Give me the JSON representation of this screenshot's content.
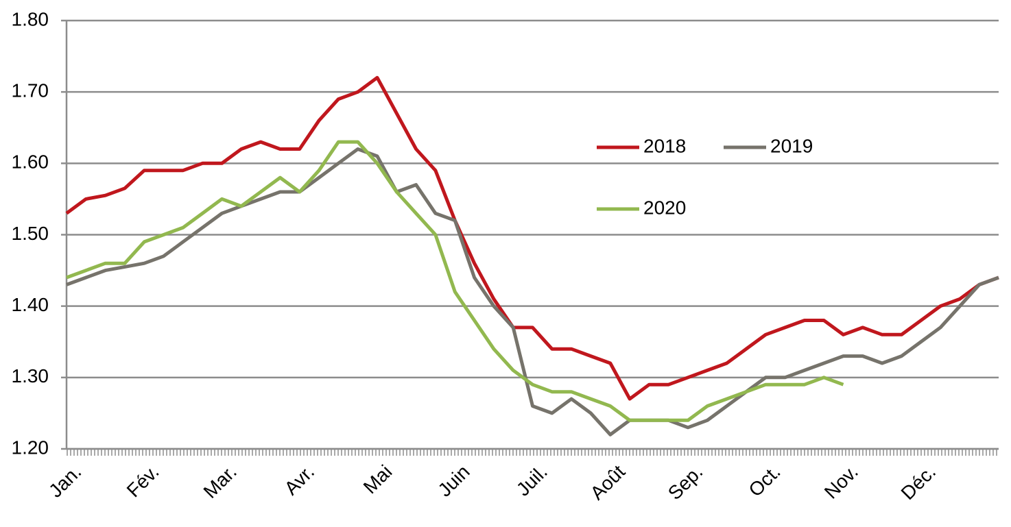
{
  "chart_data": {
    "type": "line",
    "categories": [
      "Jan.",
      null,
      null,
      null,
      "Fév.",
      null,
      null,
      null,
      "Mar.",
      null,
      null,
      null,
      "Avr.",
      null,
      null,
      null,
      "Mai",
      null,
      null,
      null,
      "Juin",
      null,
      null,
      null,
      "Juil.",
      null,
      null,
      null,
      "Août",
      null,
      null,
      null,
      "Sep.",
      null,
      null,
      null,
      "Oct.",
      null,
      null,
      null,
      "Nov.",
      null,
      null,
      null,
      "Déc.",
      null,
      null,
      null,
      null
    ],
    "series": [
      {
        "name": "2018",
        "color": "#c0171d",
        "values": [
          1.53,
          1.55,
          1.555,
          1.565,
          1.59,
          1.59,
          1.59,
          1.6,
          1.6,
          1.62,
          1.63,
          1.62,
          1.62,
          1.66,
          1.69,
          1.7,
          1.72,
          1.67,
          1.62,
          1.59,
          1.52,
          1.46,
          1.41,
          1.37,
          1.37,
          1.34,
          1.34,
          1.33,
          1.32,
          1.27,
          1.29,
          1.29,
          1.3,
          1.31,
          1.32,
          1.34,
          1.36,
          1.37,
          1.38,
          1.38,
          1.36,
          1.37,
          1.36,
          1.36,
          1.38,
          1.4,
          1.41,
          1.43,
          1.44
        ]
      },
      {
        "name": "2019",
        "color": "#76736b",
        "values": [
          1.43,
          1.44,
          1.45,
          1.455,
          1.46,
          1.47,
          1.49,
          1.51,
          1.53,
          1.54,
          1.55,
          1.56,
          1.56,
          1.58,
          1.6,
          1.62,
          1.61,
          1.56,
          1.57,
          1.53,
          1.52,
          1.44,
          1.4,
          1.37,
          1.26,
          1.25,
          1.27,
          1.25,
          1.22,
          1.24,
          1.24,
          1.24,
          1.23,
          1.24,
          1.26,
          1.28,
          1.3,
          1.3,
          1.31,
          1.32,
          1.33,
          1.33,
          1.32,
          1.33,
          1.35,
          1.37,
          1.4,
          1.43,
          1.44
        ]
      },
      {
        "name": "2020",
        "color": "#92b84f",
        "values": [
          1.44,
          1.45,
          1.46,
          1.46,
          1.49,
          1.5,
          1.51,
          1.53,
          1.55,
          1.54,
          1.56,
          1.58,
          1.56,
          1.59,
          1.63,
          1.63,
          1.6,
          1.56,
          1.53,
          1.5,
          1.42,
          1.38,
          1.34,
          1.31,
          1.29,
          1.28,
          1.28,
          1.27,
          1.26,
          1.24,
          1.24,
          1.24,
          1.24,
          1.26,
          1.27,
          1.28,
          1.29,
          1.29,
          1.29,
          1.3,
          1.29,
          null,
          null,
          null,
          null,
          null,
          null,
          null,
          null
        ]
      }
    ],
    "ylim": [
      1.2,
      1.8
    ],
    "yticks": [
      {
        "value": 1.2,
        "label": "1.20"
      },
      {
        "value": 1.3,
        "label": "1.30"
      },
      {
        "value": 1.4,
        "label": "1.40"
      },
      {
        "value": 1.5,
        "label": "1.50"
      },
      {
        "value": 1.6,
        "label": "1.60"
      },
      {
        "value": 1.7,
        "label": "1.70"
      },
      {
        "value": 1.8,
        "label": "1.80"
      }
    ],
    "grid": true
  }
}
